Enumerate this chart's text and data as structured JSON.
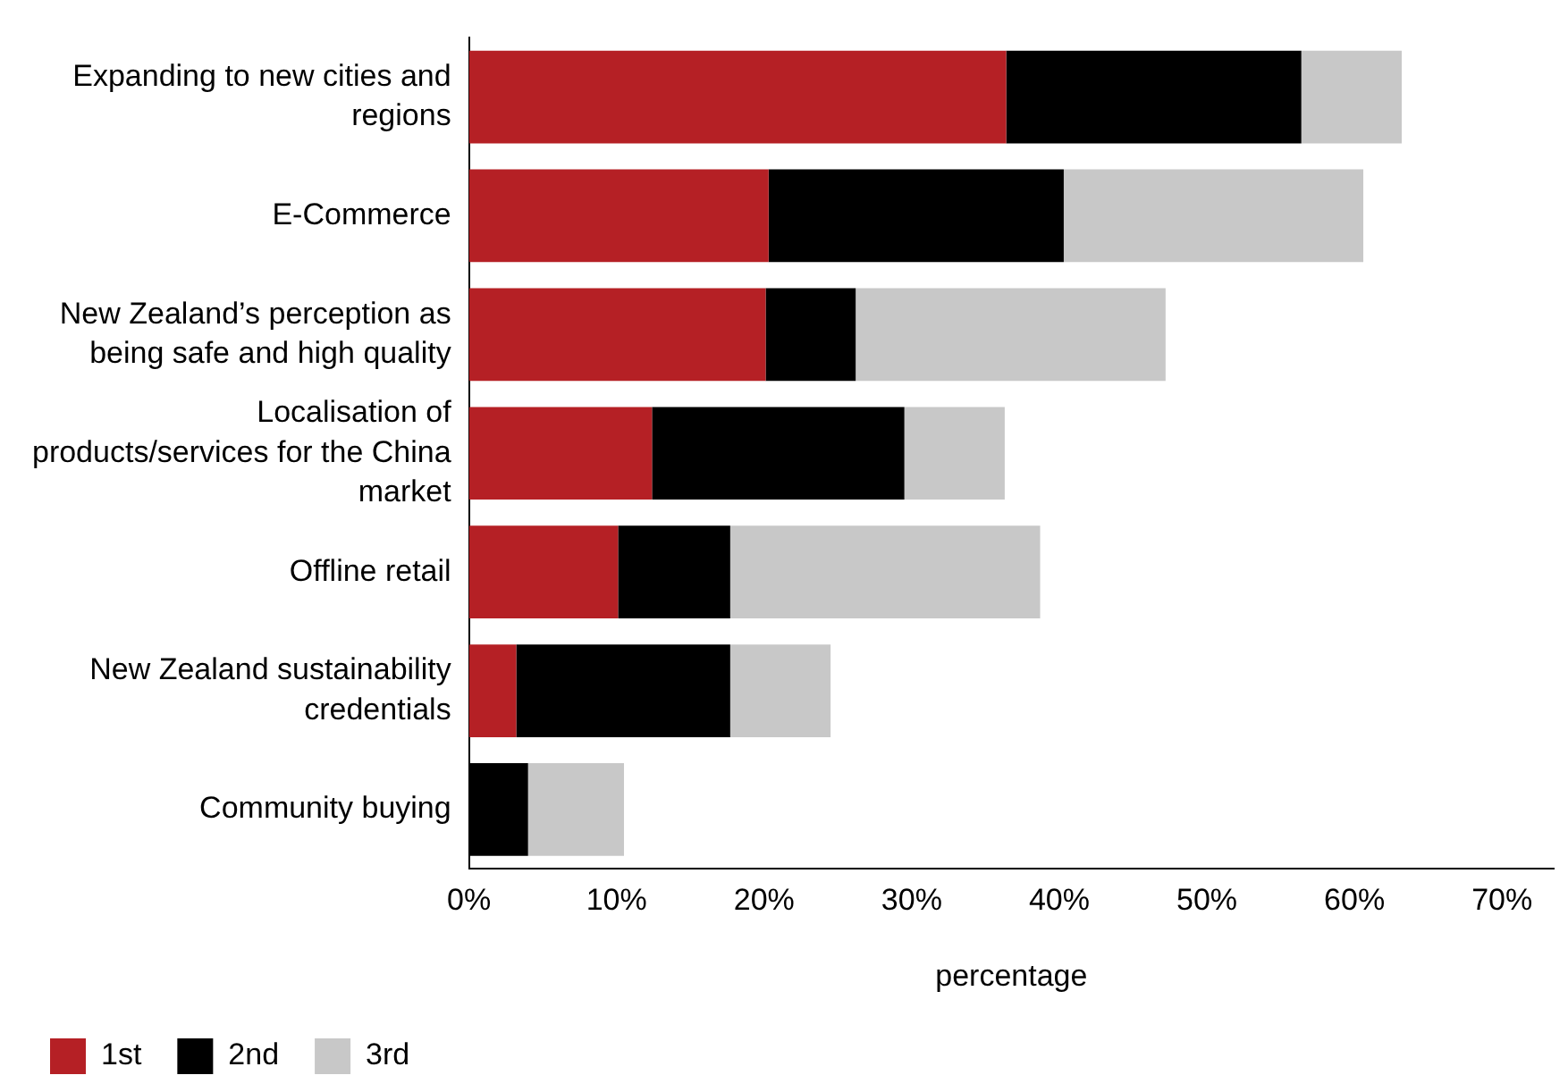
{
  "chart_data": {
    "type": "bar",
    "orientation": "horizontal",
    "stacked": true,
    "xlabel": "percentage",
    "categories": [
      "Expanding to new cities and regions",
      "E-Commerce",
      "New Zealand’s perception as being safe and high quality",
      "Localisation of products/services for the China market",
      "Offline retail",
      "New Zealand sustainability credentials",
      "Community buying"
    ],
    "series": [
      {
        "name": "1st",
        "color": "#b52025",
        "values": [
          36.4,
          20.3,
          20.1,
          12.4,
          10.1,
          3.2,
          0
        ]
      },
      {
        "name": "2nd",
        "color": "#000000",
        "values": [
          20.0,
          20.0,
          6.1,
          17.1,
          7.6,
          14.5,
          4.0
        ]
      },
      {
        "name": "3rd",
        "color": "#c8c8c8",
        "values": [
          6.8,
          20.3,
          21.0,
          6.8,
          21.0,
          6.8,
          6.5
        ]
      }
    ],
    "xlim": [
      0,
      73.5
    ],
    "xticks": [
      {
        "value": 0,
        "label": "0%"
      },
      {
        "value": 10,
        "label": "10%"
      },
      {
        "value": 20,
        "label": "20%"
      },
      {
        "value": 30,
        "label": "30%"
      },
      {
        "value": 40,
        "label": "40%"
      },
      {
        "value": 50,
        "label": "50%"
      },
      {
        "value": 60,
        "label": "60%"
      },
      {
        "value": 70,
        "label": "70%"
      }
    ],
    "grid": false,
    "legend": "bottom left"
  }
}
